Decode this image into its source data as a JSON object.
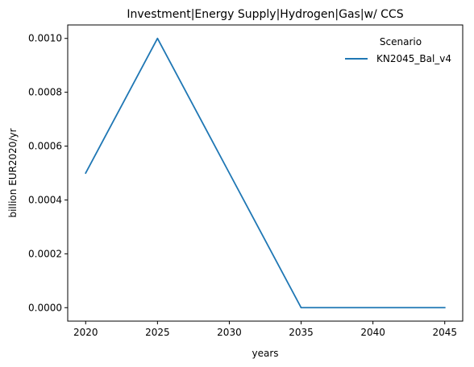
{
  "chart_data": {
    "type": "line",
    "title": "Investment|Energy Supply|Hydrogen|Gas|w/ CCS",
    "xlabel": "years",
    "ylabel": "billion EUR2020/yr",
    "x": [
      2020,
      2025,
      2030,
      2035,
      2040,
      2045
    ],
    "xticks": [
      2020,
      2025,
      2030,
      2035,
      2040,
      2045
    ],
    "xtick_labels": [
      "2020",
      "2025",
      "2030",
      "2035",
      "2040",
      "2045"
    ],
    "yticks": [
      0,
      0.0002,
      0.0004,
      0.0006,
      0.0008,
      0.001
    ],
    "ytick_labels": [
      "0.0000",
      "0.0002",
      "0.0004",
      "0.0006",
      "0.0008",
      "0.0010"
    ],
    "xlim": [
      2018.75,
      2046.25
    ],
    "ylim": [
      -5e-05,
      0.00105
    ],
    "grid": false,
    "legend": {
      "title": "Scenario",
      "placement": "top-right"
    },
    "series": [
      {
        "name": "KN2045_Bal_v4",
        "color": "#1f77b4",
        "values": [
          0.0005,
          0.001,
          0.0005,
          0.0,
          0.0,
          0.0
        ]
      }
    ]
  }
}
